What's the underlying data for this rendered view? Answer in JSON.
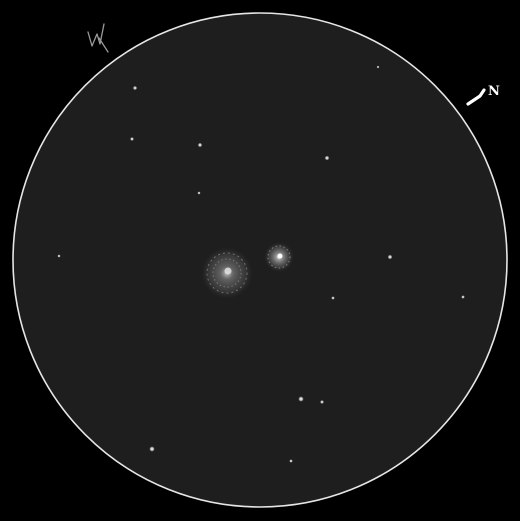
{
  "sketch": {
    "background_color": "#000000",
    "field_color": "#1e1e1e",
    "field_border_color": "#e6e6e6",
    "star_color": "#ffffff",
    "nebula_color": "#bdbdbd",
    "orientation": {
      "north_label": "N",
      "west_mark": "W"
    }
  }
}
